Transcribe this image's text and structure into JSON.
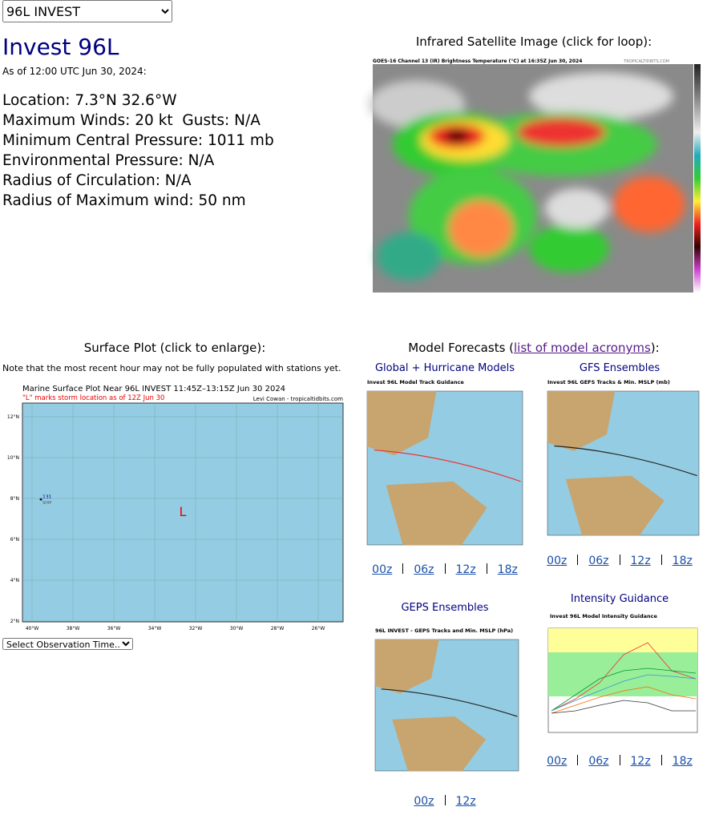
{
  "select": {
    "value": "96L INVEST"
  },
  "storm": {
    "title": "Invest 96L",
    "as_of": "As of 12:00 UTC Jun 30, 2024:",
    "details": [
      "Location: 7.3°N 32.6°W",
      "Maximum Winds: 20 kt  Gusts: N/A",
      "Minimum Central Pressure: 1011 mb",
      "Environmental Pressure: N/A",
      "Radius of Circulation: N/A",
      "Radius of Maximum wind: 50 nm"
    ]
  },
  "satellite": {
    "heading": "Infrared Satellite Image (click for loop):",
    "image_title": "GOES-16 Channel 13 (IR) Brightness Temperature (°C) at 16:35Z Jun 30, 2024",
    "credit": "TROPICALTIDBITS.COM"
  },
  "surface_plot": {
    "heading": "Surface Plot (click to enlarge):",
    "note": "Note that the most recent hour may not be fully populated with stations yet.",
    "map_title": "Marine Surface Plot Near 96L INVEST 11:45Z–13:15Z Jun 30 2024",
    "map_subtitle": "\"L\" marks storm location as of 12Z Jun 30",
    "credit": "Levi Cowan - tropicaltidbits.com",
    "lat_labels": [
      "12°N",
      "10°N",
      "8°N",
      "6°N",
      "4°N",
      "2°N"
    ],
    "lon_labels": [
      "40°W",
      "38°W",
      "36°W",
      "34°W",
      "32°W",
      "30°W",
      "28°W",
      "26°W"
    ],
    "station": {
      "value": "131",
      "type": "SHIP"
    },
    "storm_marker": "L",
    "time_select": "Select Observation Time..."
  },
  "model_forecasts": {
    "heading_prefix": "Model Forecasts (",
    "link": "list of model acronyms",
    "heading_suffix": "):",
    "panels": [
      {
        "title": "Global + Hurricane Models",
        "image_title": "Invest 96L Model Track Guidance",
        "runs": [
          "00z",
          "06z",
          "12z",
          "18z"
        ]
      },
      {
        "title": "GFS Ensembles",
        "image_title": "Invest 96L GEFS Tracks & Min. MSLP (mb)",
        "runs": [
          "00z",
          "06z",
          "12z",
          "18z"
        ]
      },
      {
        "title": "GEPS Ensembles",
        "image_title": "96L INVEST - GEPS Tracks and Min. MSLP (hPa)",
        "runs": [
          "00z",
          "12z"
        ]
      },
      {
        "title": "Intensity Guidance",
        "image_title": "Invest 96L Model Intensity Guidance",
        "runs": [
          "00z",
          "06z",
          "12z",
          "18z"
        ]
      }
    ]
  }
}
